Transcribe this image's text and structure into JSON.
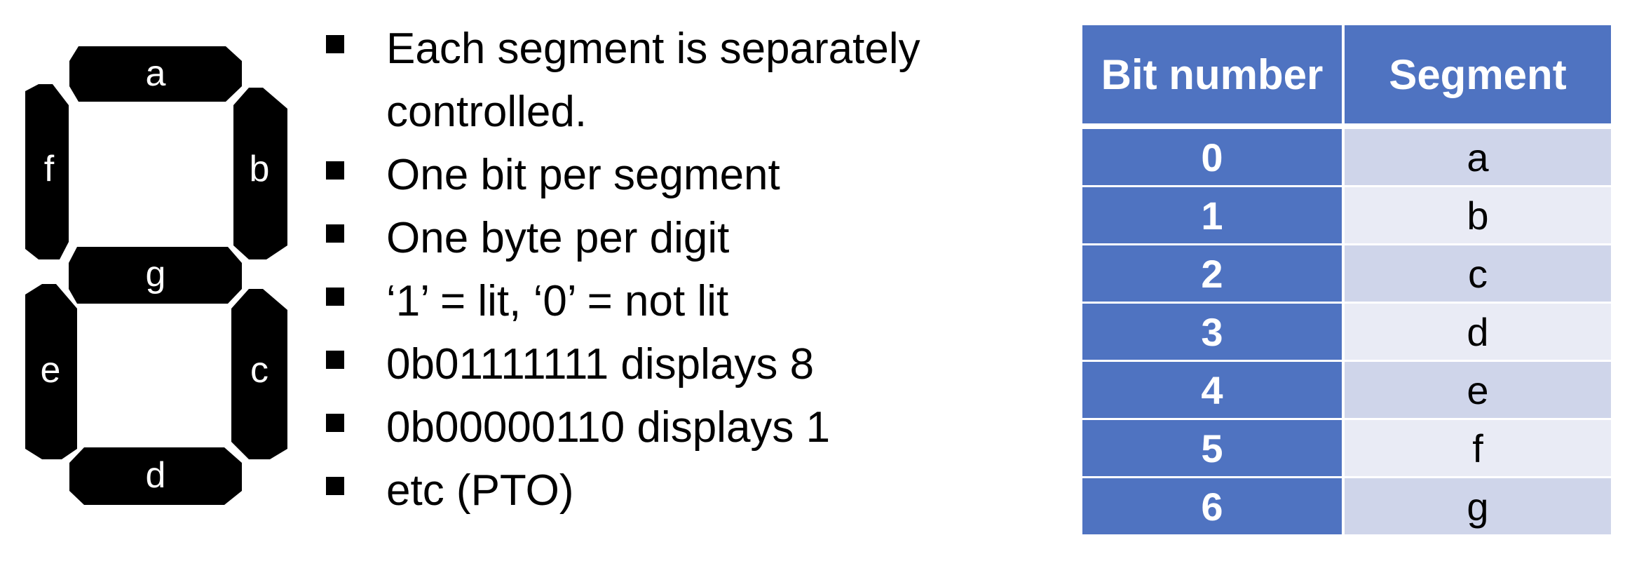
{
  "seven_segment": {
    "labels": {
      "a": "a",
      "b": "b",
      "c": "c",
      "d": "d",
      "e": "e",
      "f": "f",
      "g": "g"
    },
    "segment_color": "#000000",
    "label_color": "#ffffff"
  },
  "bullets": [
    "Each segment is separately controlled.",
    "One bit per segment",
    "One byte per digit",
    "‘1’ = lit, ‘0’ = not lit",
    "0b01111111 displays 8",
    "0b00000110 displays 1",
    "etc (PTO)"
  ],
  "table": {
    "headers": {
      "bit": "Bit number",
      "segment": "Segment"
    },
    "rows": [
      {
        "bit": "0",
        "segment": "a"
      },
      {
        "bit": "1",
        "segment": "b"
      },
      {
        "bit": "2",
        "segment": "c"
      },
      {
        "bit": "3",
        "segment": "d"
      },
      {
        "bit": "4",
        "segment": "e"
      },
      {
        "bit": "5",
        "segment": "f"
      },
      {
        "bit": "6",
        "segment": "g"
      }
    ],
    "colors": {
      "header": "#4f73c1",
      "row_dark": "#cfd5ea",
      "row_light": "#e9ebf5"
    }
  }
}
